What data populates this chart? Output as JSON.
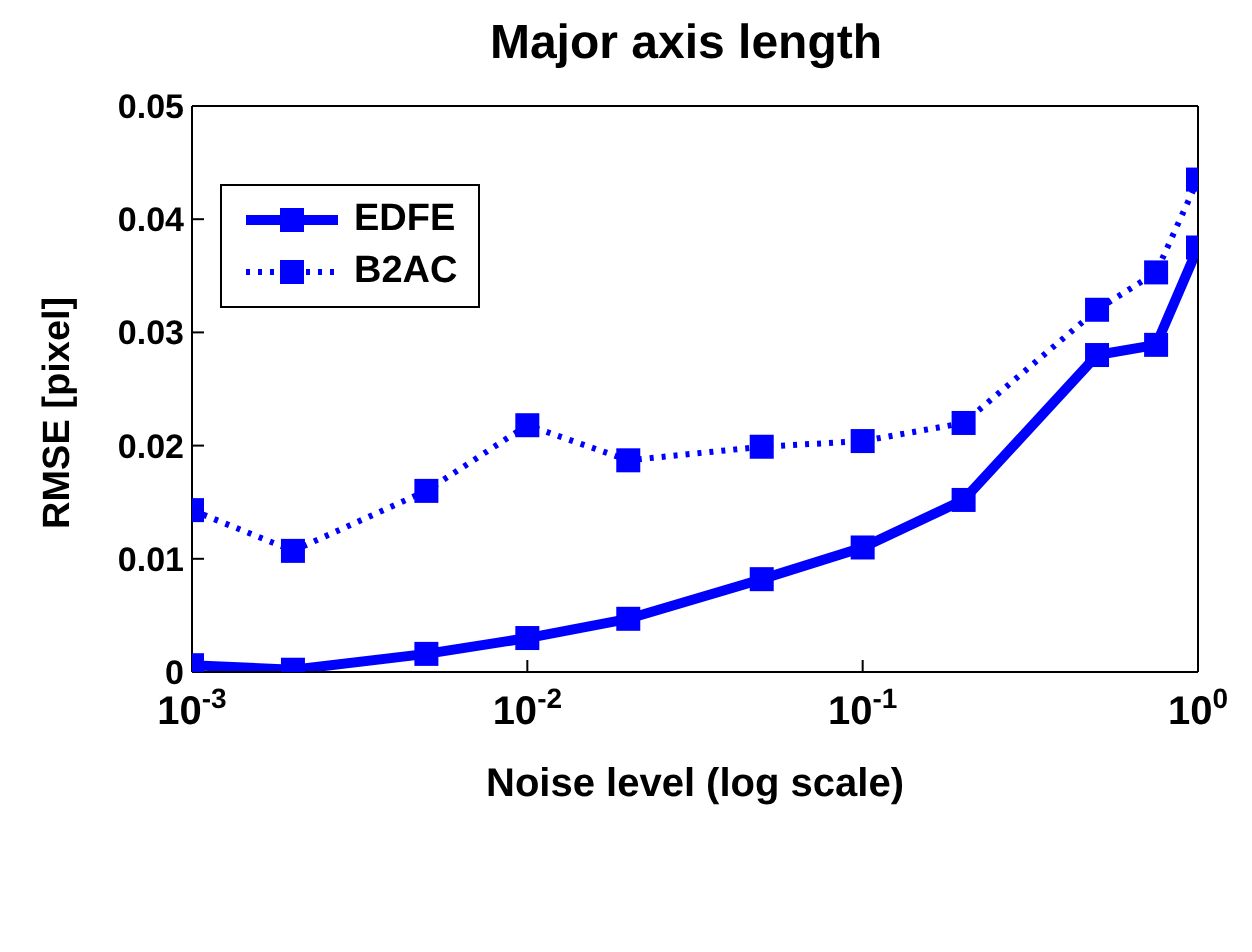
{
  "chart_data": {
    "type": "line",
    "title": "Major axis length",
    "xlabel": "Noise level (log scale)",
    "ylabel": "RMSE [pixel]",
    "x": [
      0.001,
      0.002,
      0.005,
      0.01,
      0.02,
      0.05,
      0.1,
      0.2,
      0.5,
      0.75,
      1
    ],
    "series": [
      {
        "name": "EDFE",
        "color": "#0000ff",
        "line_style": "solid",
        "values": [
          0.0006,
          0.0002,
          0.0016,
          0.003,
          0.0047,
          0.0082,
          0.011,
          0.0152,
          0.028,
          0.0289,
          0.0375
        ]
      },
      {
        "name": "B2AC",
        "color": "#0000ff",
        "line_style": "dotted",
        "values": [
          0.0143,
          0.0107,
          0.016,
          0.0218,
          0.0187,
          0.0199,
          0.0204,
          0.022,
          0.032,
          0.0353,
          0.0435
        ]
      }
    ],
    "log": "x",
    "xlim": [
      0.001,
      1
    ],
    "xticks": [
      {
        "value": 0.001,
        "label": "10$^{-3}$"
      },
      {
        "value": 0.01,
        "label": "10$^{-2}$"
      },
      {
        "value": 0.1,
        "label": "10$^{-1}$"
      },
      {
        "value": 1,
        "label": "10$^{0}$"
      }
    ],
    "ylim": [
      0,
      0.05
    ],
    "yticks": [
      0,
      0.01,
      0.02,
      0.03,
      0.04,
      0.05
    ],
    "marker": "square",
    "legend": "top left",
    "grid": false
  }
}
